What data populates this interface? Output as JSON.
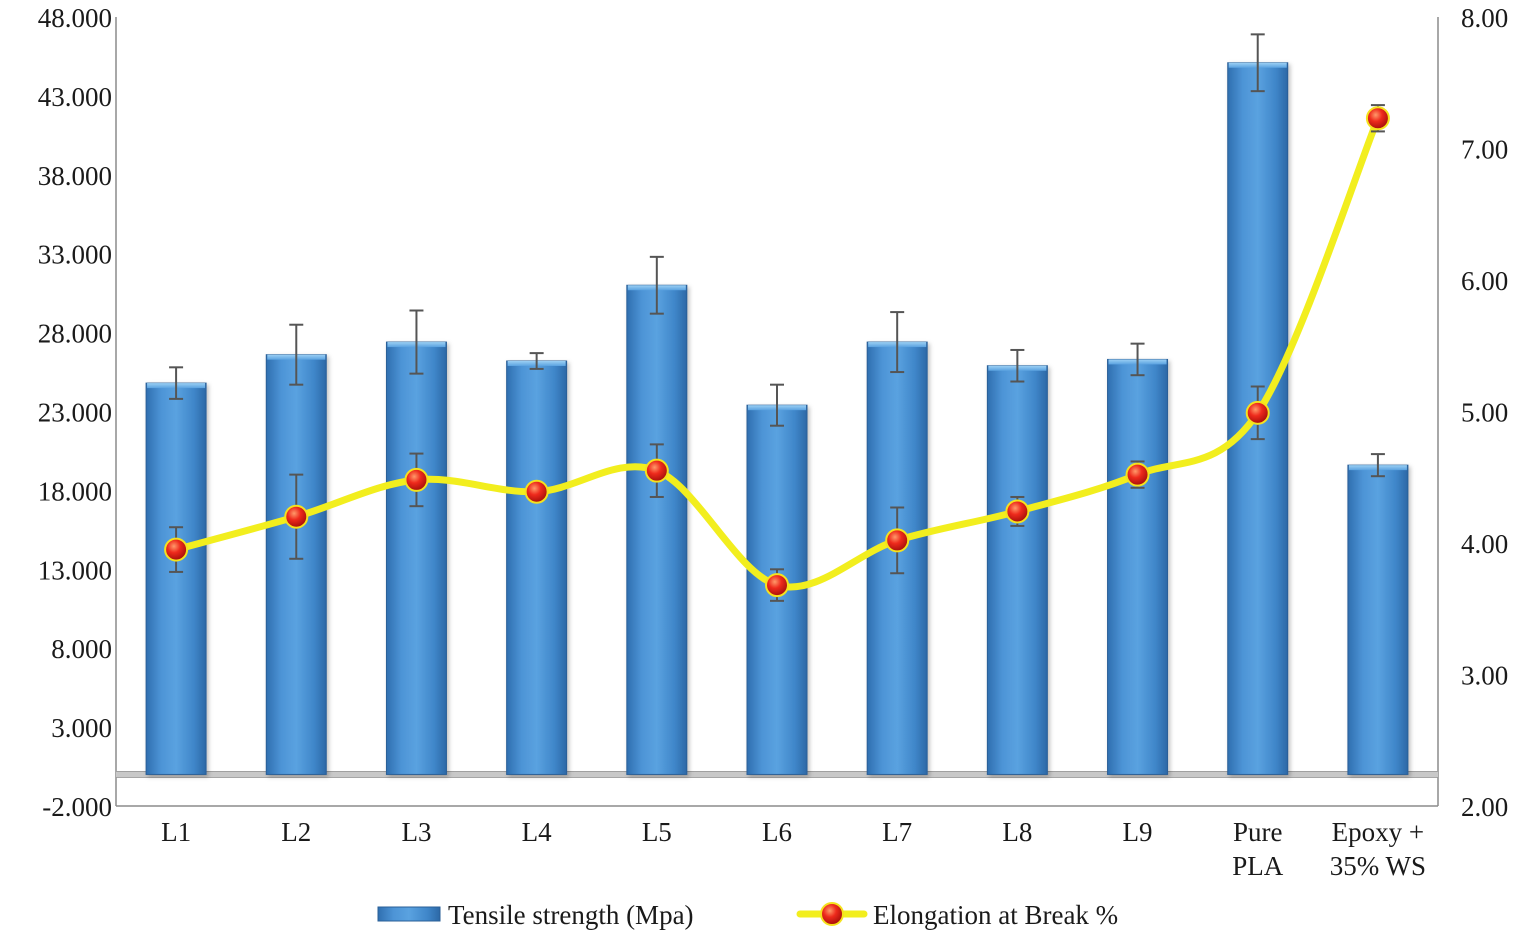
{
  "chart_data": {
    "type": "bar+line",
    "categories": [
      [
        "L1"
      ],
      [
        "L2"
      ],
      [
        "L3"
      ],
      [
        "L4"
      ],
      [
        "L5"
      ],
      [
        "L6"
      ],
      [
        "L7"
      ],
      [
        "L8"
      ],
      [
        "L9"
      ],
      [
        "Pure",
        "PLA"
      ],
      [
        "Epoxy +",
        "35% WS"
      ]
    ],
    "series": [
      {
        "name": "Tensile strength  (Mpa)",
        "type": "bar",
        "axis": "left",
        "color": "#3f86c9",
        "values": [
          24.8,
          26.6,
          27.4,
          26.2,
          31.0,
          23.4,
          27.4,
          25.9,
          26.3,
          45.1,
          19.6
        ],
        "errors": [
          1.0,
          1.9,
          2.0,
          0.5,
          1.8,
          1.3,
          1.9,
          1.0,
          1.0,
          1.8,
          0.7
        ]
      },
      {
        "name": "Elongation at Break %",
        "type": "line",
        "axis": "right",
        "color": "#f2ee1e",
        "marker_color": "#e8261b",
        "values": [
          3.95,
          4.2,
          4.48,
          4.39,
          4.55,
          3.68,
          4.02,
          4.24,
          4.52,
          4.99,
          7.23
        ],
        "errors": [
          0.17,
          0.32,
          0.2,
          0.02,
          0.2,
          0.12,
          0.25,
          0.11,
          0.1,
          0.2,
          0.1
        ]
      }
    ],
    "y_left": {
      "min": -2,
      "max": 48,
      "step": 5,
      "tick_labels": [
        "-2.000",
        "3.000",
        "8.000",
        "13.000",
        "18.000",
        "23.000",
        "28.000",
        "33.000",
        "38.000",
        "43.000",
        "48.000"
      ]
    },
    "y_right": {
      "min": 2,
      "max": 8,
      "step": 1,
      "tick_labels": [
        "2.00",
        "3.00",
        "4.00",
        "5.00",
        "6.00",
        "7.00",
        "8.00"
      ]
    },
    "baseline": 0,
    "title": "",
    "xlabel": "",
    "ylabel": "",
    "legend_position": "bottom-center",
    "grid": false
  }
}
